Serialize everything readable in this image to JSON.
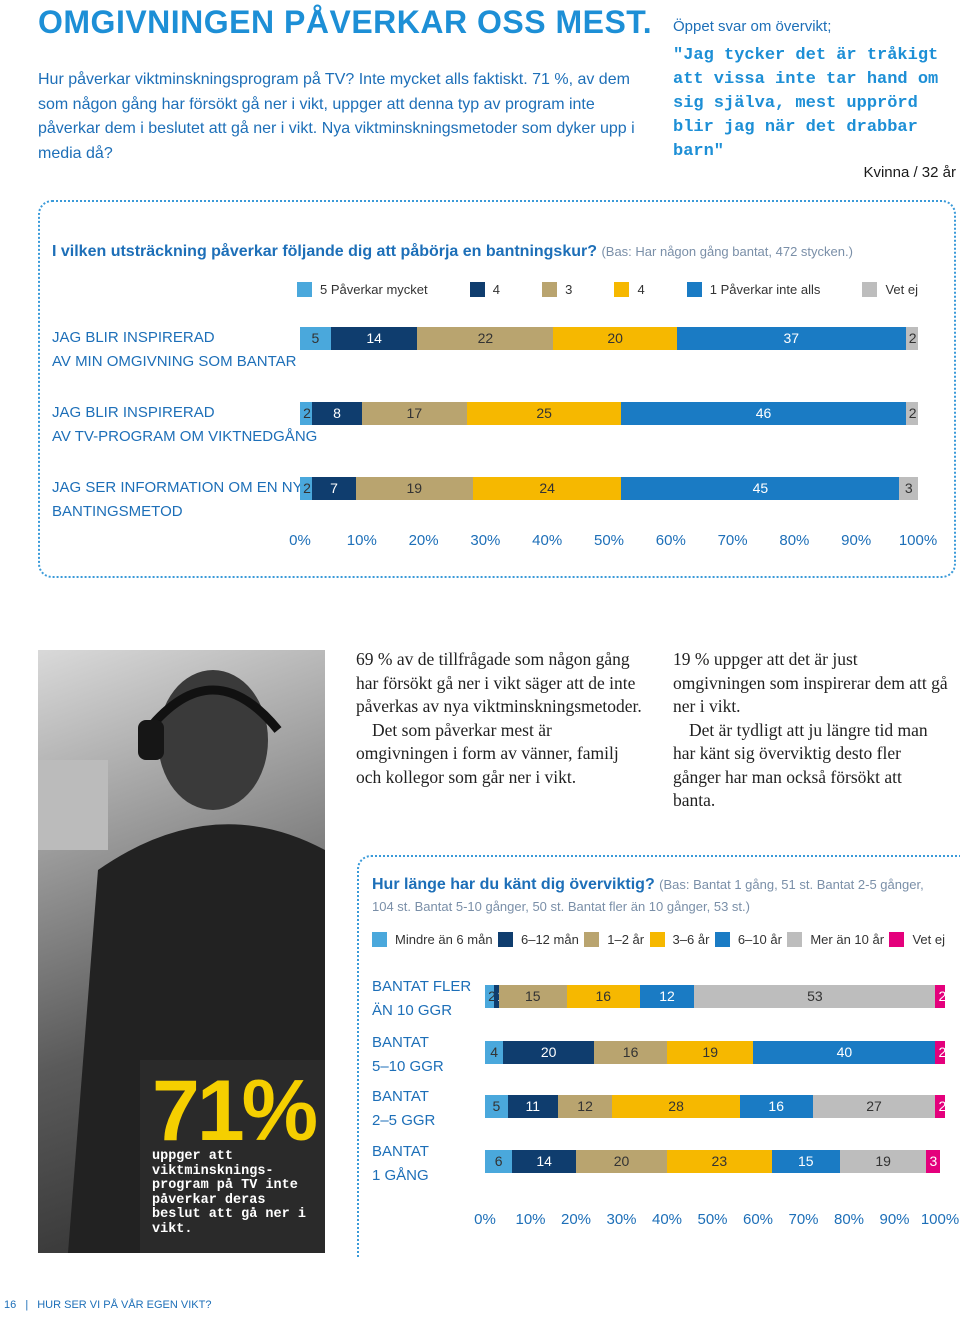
{
  "header": {
    "title": "OMGIVNINGEN PÅVERKAR OSS MEST.",
    "intro": "Hur påverkar viktminskningsprogram på TV? Inte mycket alls faktiskt. 71 %, av dem som någon gång har försökt gå ner i vikt, uppger att denna typ av program inte påverkar dem i beslutet att gå ner i vikt. Nya viktminskningsmetoder som dyker upp i media då?",
    "quote_label": "Öppet svar om övervikt;",
    "quote": "\"Jag tycker det är tråkigt att vissa inte tar hand om sig själva, mest upprörd blir jag när det drabbar barn\"",
    "quote_author": "Kvinna / 32 år"
  },
  "chart_data": [
    {
      "type": "bar",
      "orientation": "horizontal",
      "stacked": true,
      "title": "I vilken utsträckning påverkar följande dig att påbörja en bantningskur?",
      "subtitle": "(Bas: Har någon gång bantat, 472 stycken.)",
      "categories": [
        "JAG BLIR INSPIRERAD\nAV MIN OMGIVNING SOM BANTAR",
        "JAG BLIR INSPIRERAD\nAV TV-PROGRAM OM VIKTNEDGÅNG",
        "JAG SER INFORMATION OM EN NY\nBANTINGSMETOD"
      ],
      "series": [
        {
          "name": "5 Påverkar mycket",
          "color": "#4aa8dc",
          "values": [
            5,
            2,
            2
          ]
        },
        {
          "name": "4",
          "color": "#0f3d6e",
          "values": [
            14,
            8,
            7
          ]
        },
        {
          "name": "3",
          "color": "#b9a46f",
          "values": [
            22,
            17,
            19
          ]
        },
        {
          "name": "4",
          "color": "#f6b800",
          "values": [
            20,
            25,
            24
          ]
        },
        {
          "name": "1 Påverkar inte alls",
          "color": "#1a7bc4",
          "values": [
            37,
            46,
            45
          ]
        },
        {
          "name": "Vet ej",
          "color": "#bdbdbd",
          "values": [
            2,
            2,
            3
          ]
        }
      ],
      "xlim": [
        0,
        100
      ],
      "xticks": [
        {
          "value": 0,
          "label": "0%"
        },
        {
          "value": 10,
          "label": "10%"
        },
        {
          "value": 20,
          "label": "20%"
        },
        {
          "value": 30,
          "label": "30%"
        },
        {
          "value": 40,
          "label": "40%"
        },
        {
          "value": 50,
          "label": "50%"
        },
        {
          "value": 60,
          "label": "60%"
        },
        {
          "value": 70,
          "label": "70%"
        },
        {
          "value": 80,
          "label": "80%"
        },
        {
          "value": 90,
          "label": "90%"
        },
        {
          "value": 100,
          "label": "100%"
        }
      ],
      "legend": "top"
    },
    {
      "type": "bar",
      "orientation": "horizontal",
      "stacked": true,
      "title": "Hur länge har du känt dig överviktig?",
      "subtitle": "(Bas: Bantat 1 gång, 51 st. Bantat 2-5 gånger, 104 st. Bantat 5-10 gånger, 50 st. Bantat fler än 10 gånger, 53 st.)",
      "categories": [
        "BANTAT FLER\nÄN 10 GGR",
        "BANTAT\n5–10 GGR",
        "BANTAT\n2–5 GGR",
        "BANTAT\n1 GÅNG"
      ],
      "series": [
        {
          "name": "Mindre än 6 mån",
          "color": "#4aa8dc",
          "values": [
            2,
            4,
            5,
            6
          ]
        },
        {
          "name": "6–12 mån",
          "color": "#0f3d6e",
          "values": [
            1,
            20,
            11,
            14
          ]
        },
        {
          "name": "1–2 år",
          "color": "#b9a46f",
          "values": [
            15,
            16,
            12,
            20
          ]
        },
        {
          "name": "3–6 år",
          "color": "#f6b800",
          "values": [
            16,
            19,
            28,
            23
          ]
        },
        {
          "name": "6–10 år",
          "color": "#1a7bc4",
          "values": [
            12,
            40,
            16,
            15
          ]
        },
        {
          "name": "Mer än 10 år",
          "color": "#bdbdbd",
          "values": [
            53,
            null,
            27,
            19
          ]
        },
        {
          "name": "Vet ej",
          "color": "#e4007c",
          "values": [
            2,
            2,
            2,
            3
          ]
        }
      ],
      "xlim": [
        0,
        100
      ],
      "xticks": [
        {
          "value": 0,
          "label": "0%"
        },
        {
          "value": 10,
          "label": "10%"
        },
        {
          "value": 20,
          "label": "20%"
        },
        {
          "value": 30,
          "label": "30%"
        },
        {
          "value": 40,
          "label": "40%"
        },
        {
          "value": 50,
          "label": "50%"
        },
        {
          "value": 60,
          "label": "60%"
        },
        {
          "value": 70,
          "label": "70%"
        },
        {
          "value": 80,
          "label": "80%"
        },
        {
          "value": 90,
          "label": "90%"
        },
        {
          "value": 100,
          "label": "100%"
        }
      ],
      "legend": "top"
    }
  ],
  "stat": {
    "value": "71%",
    "text": "uppger att viktminsknings-program på TV inte påverkar deras beslut att gå ner i vikt."
  },
  "columns": [
    [
      "69 % av de tillfrågade som någon gång har försökt gå ner i vikt säger att de inte påverkas av nya viktminskningsmetoder.",
      "Det som påverkar mest är omgivningen i form av vänner, familj och kollegor som går ner i vikt."
    ],
    [
      "19 % uppger att det är just omgivningen som inspirerar dem att gå ner i vikt.",
      "Det är tydligt att ju längre tid man har känt sig överviktig desto fler gånger har man också försökt att banta."
    ]
  ],
  "footer": {
    "page": "16",
    "section": "HUR SER VI PÅ VÅR EGEN VIKT?"
  }
}
